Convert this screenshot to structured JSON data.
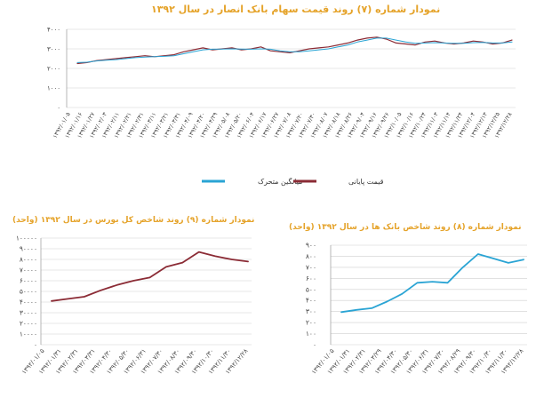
{
  "chart_data": [
    {
      "type": "line",
      "title": "نمودار شماره (۷) روند قیمت سهام بانک انصار در سال ۱۳۹۲",
      "y_ticks": [
        "۴۰۰۰",
        "۳۰۰۰",
        "۲۰۰۰",
        "۱۰۰۰",
        "۰"
      ],
      "ylim": [
        0,
        4000
      ],
      "x_tick_labels": [
        "۱۳۹۲/۰۱/۰۵",
        "۱۳۹۲/۰۱/۱۶",
        "۱۳۹۲/۰۱/۲۷",
        "۱۳۹۲/۰۲/۰۳",
        "۱۳۹۲/۰۲/۱۱",
        "۱۳۹۲/۰۲/۲۱",
        "۱۳۹۲/۰۲/۳۱",
        "۱۳۹۲/۰۳/۱۱",
        "۱۳۹۲/۰۳/۲۱",
        "۱۳۹۲/۰۳/۳۱",
        "۱۳۹۲/۰۴/۰۹",
        "۱۳۹۲/۰۴/۲۰",
        "۱۳۹۲/۰۴/۲۹",
        "۱۳۹۲/۰۵/۰۸",
        "۱۳۹۲/۰۵/۲۰",
        "۱۳۹۲/۰۶/۰۴",
        "۱۳۹۲/۰۶/۱۷",
        "۱۳۹۲/۰۶/۲۷",
        "۱۳۹۲/۰۷/۰۸",
        "۱۳۹۲/۰۷/۲۰",
        "۱۳۹۲/۰۷/۳۰",
        "۱۳۹۲/۰۸/۰۷",
        "۱۳۹۲/۰۸/۱۸",
        "۱۳۹۲/۰۸/۲۶",
        "۱۳۹۲/۰۹/۰۴",
        "۱۳۹۲/۰۹/۱۶",
        "۱۳۹۲/۰۹/۲۶",
        "۱۳۹۲/۱۰/۰۵",
        "۱۳۹۲/۱۰/۱۶",
        "۱۳۹۲/۱۰/۲۴",
        "۱۳۹۲/۱۱/۰۳",
        "۱۳۹۲/۱۱/۱۴",
        "۱۳۹۲/۱۱/۲۴",
        "۱۳۹۲/۱۲/۰۴",
        "۱۳۹۲/۱۲/۱۳",
        "۱۳۹۲/۱۲/۲۵",
        "۱۳۹۲/۱۲/۲۸"
      ],
      "series": [
        {
          "name": "قیمت پایانی",
          "color": "#8b2b35",
          "values": [
            2250,
            2300,
            2400,
            2450,
            2500,
            2550,
            2600,
            2650,
            2600,
            2650,
            2700,
            2850,
            2950,
            3050,
            2950,
            3000,
            3050,
            2950,
            3000,
            3100,
            2900,
            2850,
            2800,
            2900,
            3000,
            3050,
            3100,
            3200,
            3300,
            3450,
            3550,
            3600,
            3500,
            3300,
            3250,
            3200,
            3350,
            3400,
            3300,
            3250,
            3300,
            3400,
            3350,
            3250,
            3300,
            3450
          ]
        },
        {
          "name": "میانگین متحرک",
          "color": "#2aa4d4",
          "values": [
            2300,
            2320,
            2380,
            2420,
            2450,
            2500,
            2550,
            2580,
            2600,
            2620,
            2650,
            2750,
            2850,
            2950,
            2980,
            2990,
            3000,
            2990,
            2980,
            3000,
            2980,
            2900,
            2850,
            2850,
            2900,
            2950,
            3000,
            3100,
            3200,
            3350,
            3450,
            3550,
            3550,
            3450,
            3350,
            3280,
            3300,
            3320,
            3300,
            3280,
            3280,
            3320,
            3330,
            3300,
            3300,
            3350
          ]
        }
      ],
      "legend": [
        "میانگین متحرک",
        "قیمت پایانی"
      ]
    },
    {
      "type": "line",
      "title": "نمودار شماره (۹) روند شاخص کل بورس در سال ۱۳۹۲ (واحد)",
      "y_ticks": [
        "۱۰۰۰۰۰",
        "۹۰۰۰۰",
        "۸۰۰۰۰",
        "۷۰۰۰۰",
        "۶۰۰۰۰",
        "۵۰۰۰۰",
        "۴۰۰۰۰",
        "۳۰۰۰۰",
        "۲۰۰۰۰",
        "۱۰۰۰۰",
        "۰"
      ],
      "ylim": [
        0,
        100000
      ],
      "x_tick_labels": [
        "۱۳۹۲/۰۱/۰۵",
        "۱۳۹۲/۰۱/۳۱",
        "۱۳۹۲/۰۲/۳۱",
        "۱۳۹۲/۰۳/۳۱",
        "۱۳۹۲/۰۴/۳۰",
        "۱۳۹۲/۰۵/۳۰",
        "۱۳۹۲/۰۶/۳۱",
        "۱۳۹۲/۰۷/۳۰",
        "۱۳۹۲/۰۸/۳۰",
        "۱۳۹۲/۰۹/۳۰",
        "۱۳۹۲/۱۰/۳۰",
        "۱۳۹۲/۱۱/۳۰",
        "۱۳۹۲/۱۲/۲۸"
      ],
      "series": [
        {
          "name": "",
          "color": "#8b2b35",
          "values": [
            41000,
            43000,
            45000,
            51000,
            56000,
            60000,
            63000,
            73000,
            77000,
            87000,
            83000,
            80000,
            78000
          ]
        }
      ]
    },
    {
      "type": "line",
      "title": "نمودار شماره (۸) روند شاخص بانک ها در سال ۱۳۹۲ (واحد)",
      "y_ticks": [
        "۹۰۰",
        "۸۰۰",
        "۷۰۰",
        "۶۰۰",
        "۵۰۰",
        "۴۰۰",
        "۳۰۰",
        "۲۰۰",
        "۱۰۰",
        "۰"
      ],
      "ylim": [
        0,
        900
      ],
      "x_tick_labels": [
        "۱۳۹۲/۰۱/۰۵",
        "۱۳۹۲/۰۱/۳۱",
        "۱۳۹۲/۰۲/۳۱",
        "۱۳۹۲/۰۳/۲۹",
        "۱۳۹۲/۰۴/۳۰",
        "۱۳۹۲/۰۵/۳۰",
        "۱۳۹۲/۰۶/۳۱",
        "۱۳۹۲/۰۷/۳۰",
        "۱۳۹۲/۰۸/۲۹",
        "۱۳۹۲/۰۹/۳۰",
        "۱۳۹۲/۱۰/۳۰",
        "۱۳۹۲/۱۱/۳۰",
        "۱۳۹۲/۱۲/۲۸"
      ],
      "series": [
        {
          "name": "",
          "color": "#2aa4d4",
          "values": [
            295,
            315,
            330,
            390,
            460,
            560,
            570,
            560,
            700,
            820,
            780,
            740,
            770
          ]
        }
      ]
    }
  ]
}
